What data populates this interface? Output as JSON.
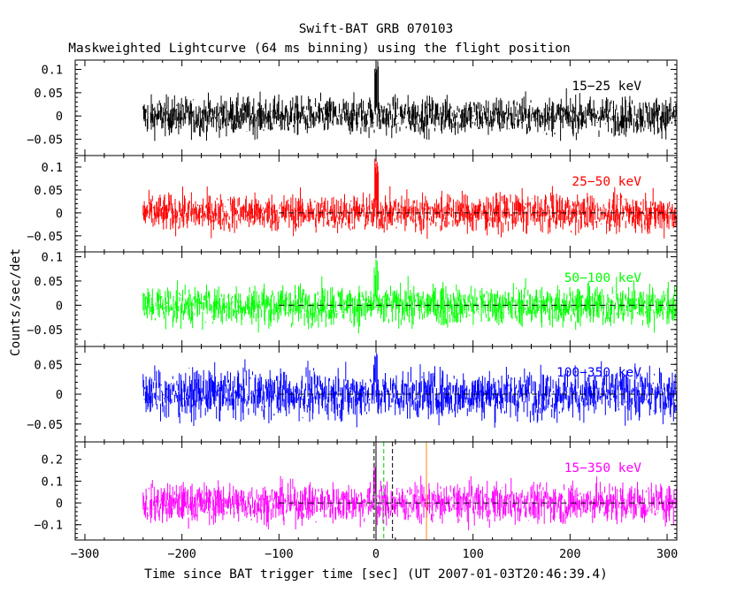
{
  "chart_data": {
    "type": "line",
    "title": "Swift-BAT GRB 070103",
    "subtitle": "Maskweighted Lightcurve (64 ms binning) using the flight position",
    "xlabel": "Time since BAT trigger time [sec] (UT 2007-01-03T20:46:39.4)",
    "ylabel": "Counts/sec/det",
    "xlim": [
      -310,
      310
    ],
    "xticks": [
      -300,
      -200,
      -100,
      0,
      100,
      200,
      300
    ],
    "data_range": [
      -240,
      310
    ],
    "dashed_reference": {
      "y": 0,
      "from_x": -100
    },
    "panels": [
      {
        "name": "15-25 keV",
        "label": "15−25 keV",
        "color": "#000000",
        "ylim": [
          -0.085,
          0.12
        ],
        "yticks": [
          0.1,
          0.05,
          0,
          -0.05
        ],
        "yticklabels": [
          "0.1",
          "0.05",
          "0",
          "−0.05"
        ],
        "noise_amplitude": 0.045,
        "peak": 0.12,
        "dashed_zero": false
      },
      {
        "name": "25-50 keV",
        "label": "25−50 keV",
        "color": "#ff0000",
        "ylim": [
          -0.085,
          0.125
        ],
        "yticks": [
          0.1,
          0.05,
          0,
          -0.05
        ],
        "yticklabels": [
          "0.1",
          "0.05",
          "0",
          "−0.05"
        ],
        "noise_amplitude": 0.045,
        "peak": 0.12,
        "dashed_zero": true
      },
      {
        "name": "50-100 keV",
        "label": "50−100 keV",
        "color": "#00ff00",
        "ylim": [
          -0.085,
          0.11
        ],
        "yticks": [
          0.1,
          0.05,
          0,
          -0.05
        ],
        "yticklabels": [
          "0.1",
          "0.05",
          "0",
          "−0.05"
        ],
        "noise_amplitude": 0.045,
        "peak": 0.1,
        "dashed_zero": true
      },
      {
        "name": "100-350 keV",
        "label": "100−350 keV",
        "color": "#0000ff",
        "ylim": [
          -0.08,
          0.08
        ],
        "yticks": [
          0.05,
          0,
          -0.05
        ],
        "yticklabels": [
          "0.05",
          "0",
          "−0.05"
        ],
        "noise_amplitude": 0.045,
        "peak": 0.07,
        "dashed_zero": true
      },
      {
        "name": "15-350 keV",
        "label": "15−350 keV",
        "color": "#ff00ff",
        "ylim": [
          -0.17,
          0.28
        ],
        "yticks": [
          0.2,
          0.1,
          0,
          -0.1
        ],
        "yticklabels": [
          "0.2",
          "0.1",
          "0",
          "−0.1"
        ],
        "noise_amplitude": 0.1,
        "peak": 0.2,
        "dashed_zero": true
      }
    ],
    "markers": [
      {
        "x": -2,
        "color": "#000000",
        "style": "dashed"
      },
      {
        "x": 0,
        "color": "#000000",
        "style": "solid"
      },
      {
        "x": 8,
        "color": "#00cc00",
        "style": "dashed"
      },
      {
        "x": 17,
        "color": "#000000",
        "style": "dashed"
      },
      {
        "x": 52,
        "color": "#ff8800",
        "style": "solid"
      }
    ]
  }
}
